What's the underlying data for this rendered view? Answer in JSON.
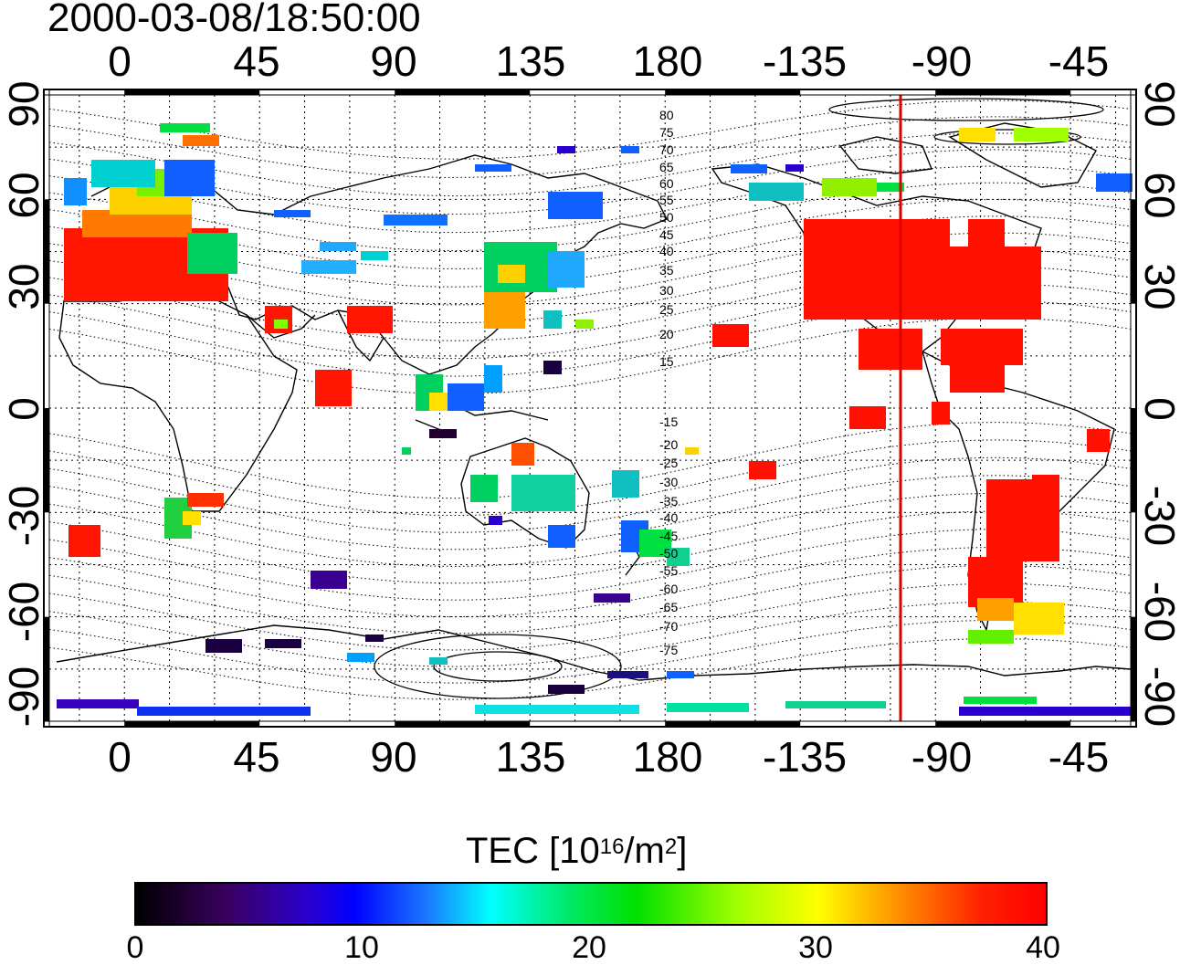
{
  "timestamp": "2000-03-08/18:50:00",
  "x_ticks": [
    "0",
    "45",
    "90",
    "135",
    "180",
    "-135",
    "-90",
    "-45"
  ],
  "y_ticks": [
    "90",
    "60",
    "30",
    "0",
    "-30",
    "-60",
    "-90"
  ],
  "contour_labels": [
    "80",
    "75",
    "70",
    "65",
    "60",
    "55",
    "50",
    "45",
    "40",
    "35",
    "30",
    "25",
    "20",
    "15",
    "-15",
    "-20",
    "-25",
    "-30",
    "-35",
    "-40",
    "-45",
    "-50",
    "-55",
    "-60",
    "-65",
    "-70",
    "-75"
  ],
  "colorbar": {
    "title": "TEC  [10",
    "title_exp": "16",
    "title_mid": "/m",
    "title_exp2": "2",
    "title_end": "]",
    "ticks": [
      "0",
      "10",
      "20",
      "30",
      "40"
    ]
  },
  "colors": {
    "high_tec": "#ff0000",
    "meridian_line": "#e00000",
    "frame": "#000000"
  },
  "map_data": {
    "projection": "equirectangular",
    "lon_range": [
      -25,
      335
    ],
    "lat_range": [
      -90,
      90
    ],
    "grid_step_deg": 15,
    "marked_meridian_lon": -103
  }
}
